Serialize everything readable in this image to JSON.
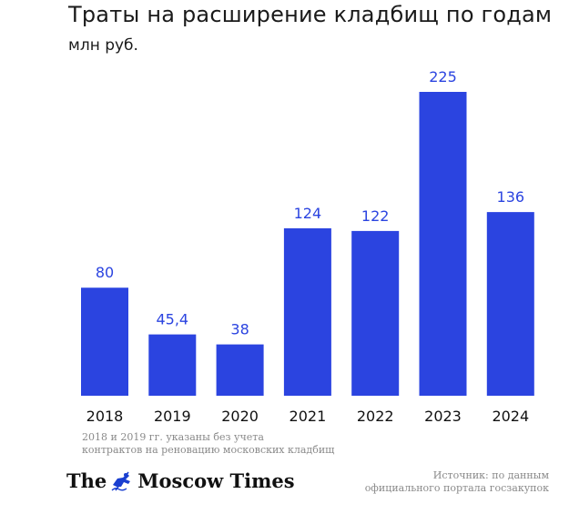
{
  "chart_data": {
    "type": "bar",
    "title": "Траты на расширение кладбищ по годам",
    "subtitle": "млн руб.",
    "categories": [
      "2018",
      "2019",
      "2020",
      "2021",
      "2022",
      "2023",
      "2024"
    ],
    "values": [
      80,
      45.4,
      38,
      124,
      122,
      225,
      136
    ],
    "value_labels": [
      "80",
      "45,4",
      "38",
      "124",
      "122",
      "225",
      "136"
    ],
    "ylim": [
      0,
      225
    ],
    "bar_color": "#2b44e0",
    "label_color": "#2b44e0",
    "grid": false
  },
  "note": {
    "line1": "2018 и 2019 гг. указаны без учета",
    "line2": "контрактов на реновацию московских кладбищ"
  },
  "logo": {
    "word1": "The",
    "word2": "Moscow Times"
  },
  "source": {
    "line1": "Источник: по данным",
    "line2": "официального портала госзакупок"
  }
}
